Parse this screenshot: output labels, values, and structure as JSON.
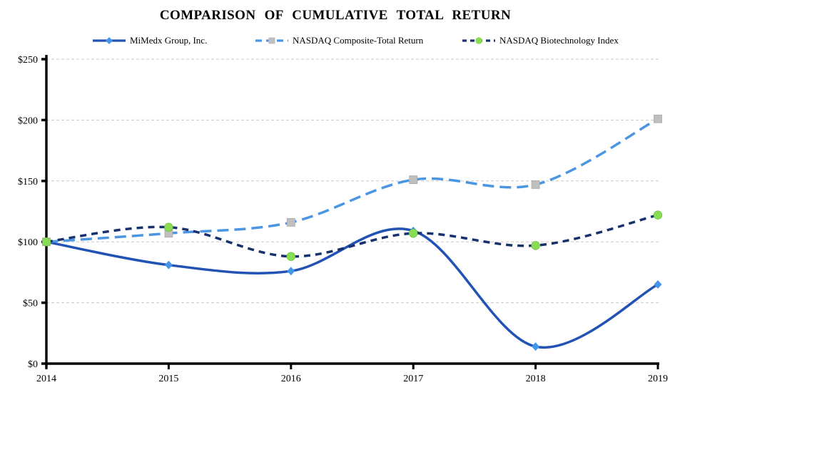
{
  "title": "COMPARISON OF CUMULATIVE TOTAL RETURN",
  "chart_data": {
    "type": "line",
    "title": "COMPARISON OF CUMULATIVE TOTAL RETURN",
    "categories": [
      "2014",
      "2015",
      "2016",
      "2017",
      "2018",
      "2019"
    ],
    "series": [
      {
        "name": "MiMedx Group, Inc.",
        "values": [
          100,
          81,
          76,
          109,
          14,
          65
        ],
        "color": "#2152B4",
        "line_style": "solid",
        "marker": "diamond",
        "marker_color": "#4596E8"
      },
      {
        "name": "NASDAQ Composite-Total Return",
        "values": [
          100,
          107,
          116,
          151,
          147,
          201
        ],
        "color": "#4B96E2",
        "line_style": "long-dash",
        "marker": "square",
        "marker_color": "#BFBFBF"
      },
      {
        "name": "NASDAQ Biotechnology Index",
        "values": [
          100,
          112,
          88,
          107,
          97,
          122
        ],
        "color": "#17316D",
        "line_style": "dash",
        "marker": "circle",
        "marker_color": "#8ADC55"
      }
    ],
    "xlabel": "",
    "ylabel": "",
    "ylim": [
      0,
      250
    ],
    "y_ticks": [
      0,
      50,
      100,
      150,
      200,
      250
    ],
    "y_tick_labels": [
      "$0",
      "$50",
      "$100",
      "$150",
      "$200",
      "$250"
    ],
    "grid": "horizontal-dashed",
    "legend_position": "top",
    "smooth": true
  },
  "colors": {
    "axis": "#000000",
    "grid": "#c8c8c8",
    "background": "#ffffff",
    "text": "#000000"
  }
}
